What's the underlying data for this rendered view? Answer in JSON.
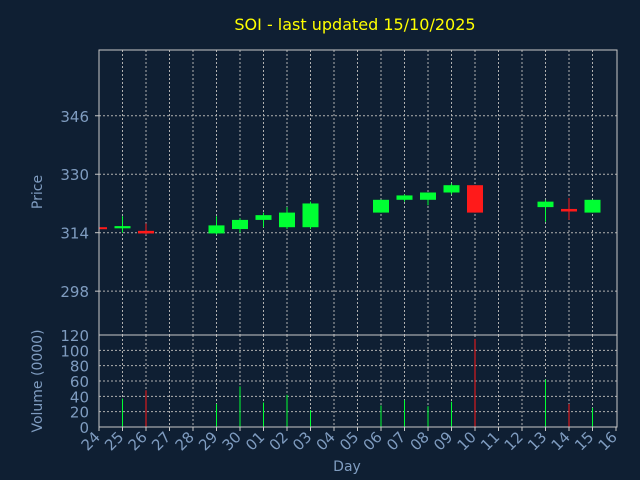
{
  "colors": {
    "background": "#0f1f33",
    "title": "#ffff00",
    "axis_text": "#7f9cc0",
    "grid": "#b0b0b0",
    "frame": "#c8c8c8",
    "up": "#00ff33",
    "down": "#ff1a1a"
  },
  "chart_data": {
    "type": "candlestick",
    "title": "SOI - last updated 15/10/2025",
    "xlabel": "Day",
    "price_panel": {
      "ylabel": "Price",
      "ylim": [
        286,
        364
      ],
      "yticks": [
        298,
        314,
        330,
        346
      ]
    },
    "volume_panel": {
      "ylabel": "Volume (0000)",
      "ylim": [
        0,
        120
      ],
      "yticks": [
        0,
        20,
        40,
        60,
        80,
        100,
        120
      ]
    },
    "x_ticks": [
      "24",
      "25",
      "26",
      "27",
      "28",
      "29",
      "30",
      "01",
      "02",
      "03",
      "04",
      "05",
      "06",
      "07",
      "08",
      "09",
      "10",
      "11",
      "12",
      "13",
      "14",
      "15",
      "16"
    ],
    "candles": [
      {
        "day": "24",
        "x": 0,
        "open": 315.5,
        "high": 316.0,
        "low": 314.8,
        "close": 315.0
      },
      {
        "day": "25",
        "x": 1,
        "open": 315.2,
        "high": 318.5,
        "low": 314.0,
        "close": 315.8
      },
      {
        "day": "26",
        "x": 2,
        "open": 314.5,
        "high": 316.5,
        "low": 313.5,
        "close": 313.8
      },
      {
        "day": "29",
        "x": 5,
        "open": 313.8,
        "high": 318.5,
        "low": 313.5,
        "close": 316.0
      },
      {
        "day": "30",
        "x": 6,
        "open": 315.0,
        "high": 318.0,
        "low": 314.0,
        "close": 317.5
      },
      {
        "day": "01",
        "x": 7,
        "open": 317.5,
        "high": 319.5,
        "low": 315.5,
        "close": 318.8
      },
      {
        "day": "02",
        "x": 8,
        "open": 315.5,
        "high": 321.0,
        "low": 315.0,
        "close": 319.5
      },
      {
        "day": "03",
        "x": 9,
        "open": 315.5,
        "high": 322.5,
        "low": 315.0,
        "close": 322.0
      },
      {
        "day": "06",
        "x": 12,
        "open": 319.5,
        "high": 323.0,
        "low": 319.5,
        "close": 323.0
      },
      {
        "day": "07",
        "x": 13,
        "open": 323.0,
        "high": 324.5,
        "low": 322.5,
        "close": 324.2
      },
      {
        "day": "08",
        "x": 14,
        "open": 323.0,
        "high": 325.0,
        "low": 321.5,
        "close": 325.0
      },
      {
        "day": "09",
        "x": 15,
        "open": 325.0,
        "high": 327.5,
        "low": 324.5,
        "close": 327.0
      },
      {
        "day": "10",
        "x": 16,
        "open": 327.0,
        "high": 327.0,
        "low": 319.5,
        "close": 319.5
      },
      {
        "day": "13",
        "x": 19,
        "open": 321.0,
        "high": 323.0,
        "low": 317.0,
        "close": 322.5
      },
      {
        "day": "14",
        "x": 20,
        "open": 320.5,
        "high": 323.5,
        "low": 317.5,
        "close": 319.8
      },
      {
        "day": "15",
        "x": 21,
        "open": 319.5,
        "high": 323.0,
        "low": 319.5,
        "close": 323.0
      }
    ],
    "volumes": [
      {
        "day": "25",
        "x": 1,
        "value": 37
      },
      {
        "day": "26",
        "x": 2,
        "value": 48
      },
      {
        "day": "29",
        "x": 5,
        "value": 30
      },
      {
        "day": "30",
        "x": 6,
        "value": 53
      },
      {
        "day": "01",
        "x": 7,
        "value": 32
      },
      {
        "day": "02",
        "x": 8,
        "value": 42
      },
      {
        "day": "03",
        "x": 9,
        "value": 22
      },
      {
        "day": "06",
        "x": 12,
        "value": 28
      },
      {
        "day": "07",
        "x": 13,
        "value": 35
      },
      {
        "day": "08",
        "x": 14,
        "value": 27
      },
      {
        "day": "09",
        "x": 15,
        "value": 33
      },
      {
        "day": "10",
        "x": 16,
        "value": 115
      },
      {
        "day": "13",
        "x": 19,
        "value": 62
      },
      {
        "day": "14",
        "x": 20,
        "value": 30
      },
      {
        "day": "15",
        "x": 21,
        "value": 25
      }
    ]
  }
}
